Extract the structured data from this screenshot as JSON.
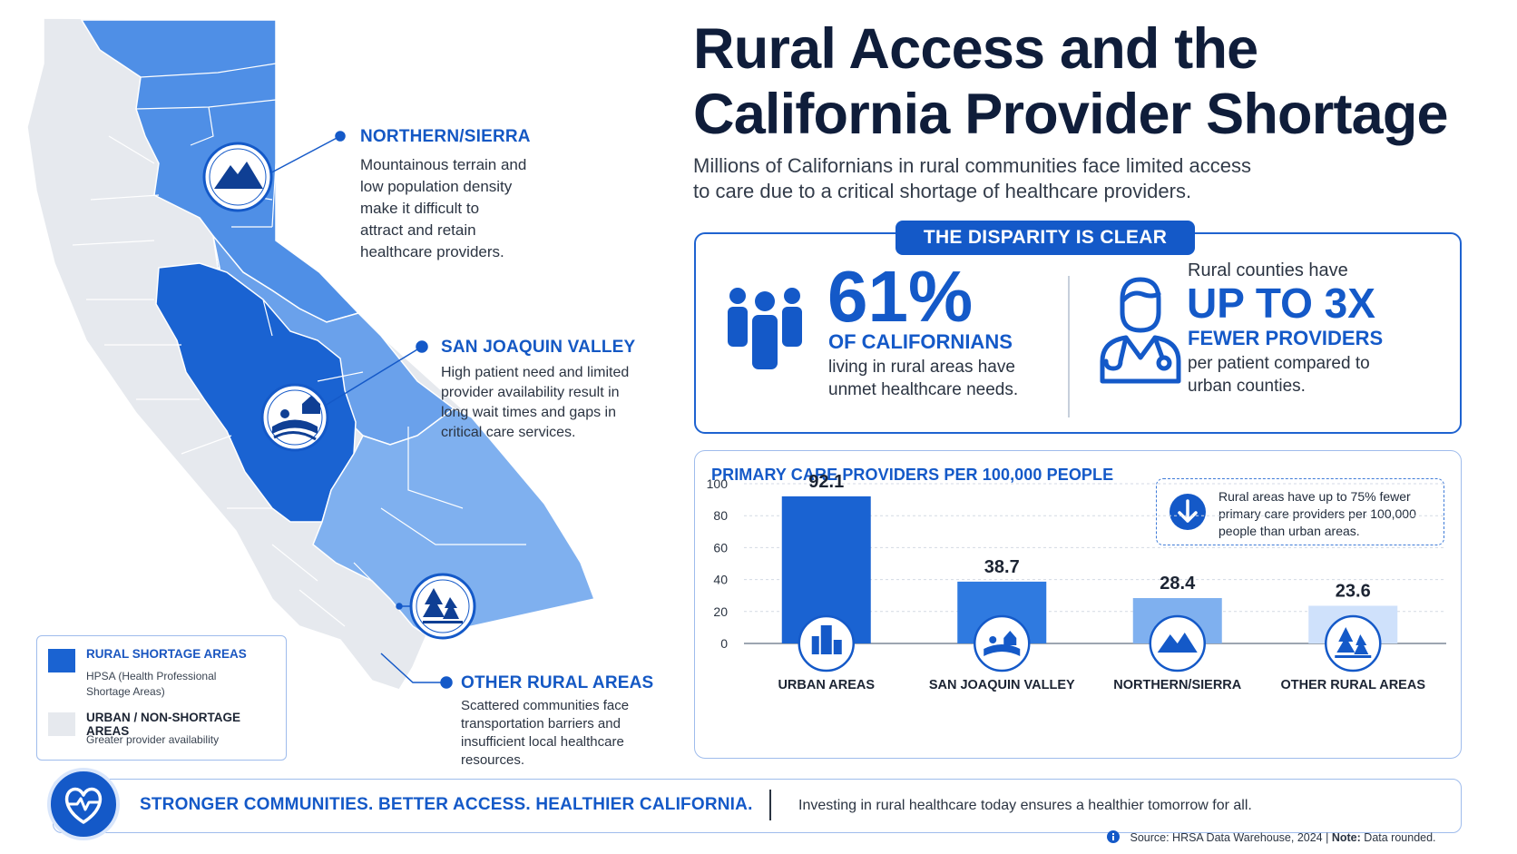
{
  "header": {
    "title_line1": "Rural Access and the",
    "title_line2": "California Provider Shortage",
    "subtitle_line1": "Millions of Californians in rural communities face limited access",
    "subtitle_line2": "to care due to a critical shortage of healthcare providers."
  },
  "regions": {
    "northern": {
      "title": "NORTHERN/SIERRA",
      "desc": [
        "Mountainous terrain and",
        "low population density",
        "make it difficult to",
        "attract and retain",
        "healthcare providers."
      ],
      "icon": "mountain-icon"
    },
    "sjv": {
      "title": "SAN JOAQUIN VALLEY",
      "desc": [
        "High patient need and limited",
        "provider availability result in",
        "long wait times and gaps in",
        "critical care services."
      ],
      "icon": "farm-icon"
    },
    "other": {
      "title": "OTHER RURAL AREAS",
      "desc": [
        "Scattered communities face",
        "transportation barriers and",
        "insufficient local healthcare",
        "resources."
      ],
      "icon": "trees-icon"
    }
  },
  "legend": {
    "rural_title": "RURAL SHORTAGE AREAS",
    "rural_sub": [
      "HPSA (Health Professional",
      "Shortage Areas)"
    ],
    "urban_title": "URBAN / NON-SHORTAGE AREAS",
    "urban_sub": "Greater provider availability"
  },
  "colors": {
    "primary": "#1459c8",
    "dark_blue": "#1a63d2",
    "mid_blue": "#4f8fe6",
    "light_blue": "#7fb0ef",
    "pale_blue": "#cfe1fb",
    "urban_gray": "#e6e9ee",
    "navy": "#0f1d3a"
  },
  "disparity": {
    "label": "THE DISPARITY IS CLEAR",
    "left": {
      "stat": "61%",
      "subtitle": "OF CALIFORNIANS",
      "text_line1": "living in rural areas have",
      "text_line2": "unmet healthcare needs.",
      "icon": "people-icon"
    },
    "right": {
      "lead": "Rural counties have",
      "stat": "UP TO 3X",
      "subtitle": "FEWER PROVIDERS",
      "text_line1": "per patient compared to",
      "text_line2": "urban counties.",
      "icon": "doctor-icon"
    }
  },
  "chart_data": {
    "type": "bar",
    "title": "PRIMARY CARE PROVIDERS PER 100,000 PEOPLE",
    "categories": [
      "URBAN AREAS",
      "SAN JOAQUIN VALLEY",
      "NORTHERN/SIERRA",
      "OTHER RURAL AREAS"
    ],
    "values": [
      92.1,
      38.7,
      28.4,
      23.6
    ],
    "value_labels": [
      "92.1",
      "38.7",
      "28.4",
      "23.6"
    ],
    "category_icons": [
      "city-icon",
      "farm-icon",
      "mountain-icon",
      "trees-icon"
    ],
    "bar_colors": [
      "#1a63d2",
      "#2f7ae0",
      "#7fb0ef",
      "#cfe1fb"
    ],
    "yticks": [
      0,
      20,
      40,
      60,
      80,
      100
    ],
    "ylim": [
      0,
      100
    ],
    "grid": true,
    "callout": {
      "text_line1": "Rural areas have up to 75% fewer",
      "text_line2": "primary care providers per 100,000",
      "text_line3": "people than urban areas.",
      "icon": "arrow-down-icon"
    }
  },
  "footer": {
    "tagline": "STRONGER COMMUNITIES. BETTER ACCESS. HEALTHIER CALIFORNIA.",
    "text": "Investing in rural healthcare today ensures a healthier tomorrow for all.",
    "source_label": "Source: HRSA Data Warehouse, 2024",
    "note_label": "Note:",
    "note_text": "Data rounded.",
    "icon": "heart-pulse-icon"
  }
}
